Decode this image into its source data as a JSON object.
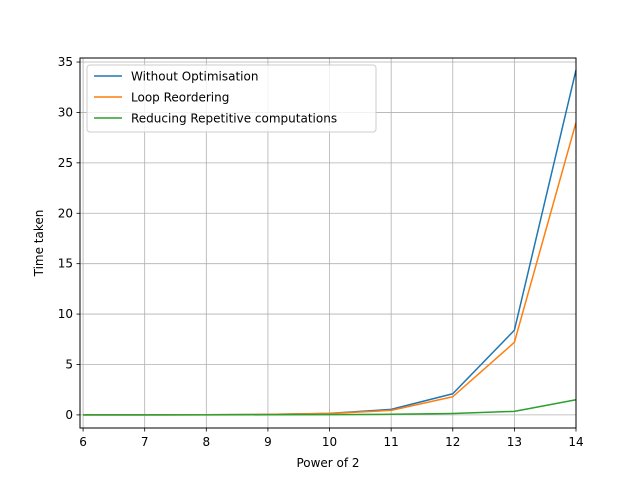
{
  "chart_data": {
    "type": "line",
    "title": "",
    "xlabel": "Power of 2",
    "ylabel": "Time taken",
    "xlim": [
      5.95,
      14.0
    ],
    "ylim": [
      -1.3,
      35.4
    ],
    "xticks": [
      6,
      7,
      8,
      9,
      10,
      11,
      12,
      13,
      14
    ],
    "yticks": [
      0,
      5,
      10,
      15,
      20,
      25,
      30,
      35
    ],
    "grid": true,
    "legend_position": "top-left",
    "x": [
      6,
      7,
      8,
      9,
      10,
      11,
      12,
      13,
      14
    ],
    "series": [
      {
        "name": "Without Optimisation",
        "color": "#1f77b4",
        "values": [
          0.0,
          0.0,
          0.01,
          0.05,
          0.15,
          0.55,
          2.1,
          8.4,
          34.2
        ]
      },
      {
        "name": "Loop Reordering",
        "color": "#ff7f0e",
        "values": [
          0.0,
          0.0,
          0.01,
          0.05,
          0.14,
          0.45,
          1.8,
          7.2,
          29.0
        ]
      },
      {
        "name": "Reducing Repetitive computations",
        "color": "#2ca02c",
        "values": [
          0.0,
          0.0,
          0.0,
          0.01,
          0.03,
          0.06,
          0.14,
          0.35,
          1.5
        ]
      }
    ]
  }
}
